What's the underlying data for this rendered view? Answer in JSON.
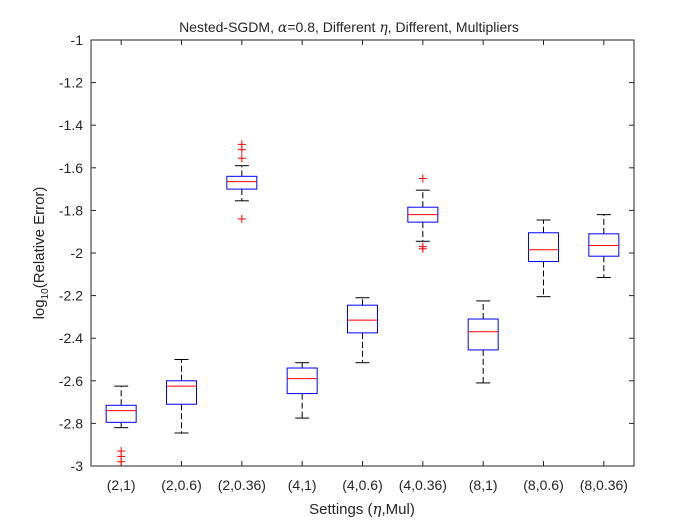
{
  "chart_data": {
    "type": "boxplot",
    "title": {
      "prefix": "Nested-SGDM, ",
      "alpha_symbol": "α",
      "alpha_value": "=0.8, Different ",
      "eta_symbol": "η",
      "suffix": ", Different, Multipliers"
    },
    "xlabel": {
      "prefix": "Settings (",
      "eta_symbol": "η",
      "suffix": ",Mul)"
    },
    "ylabel": {
      "prefix": "log",
      "subscript": "10",
      "suffix": "(Relative Error)"
    },
    "ylim": [
      -3,
      -1
    ],
    "yticks": [
      -3,
      -2.8,
      -2.6,
      -2.4,
      -2.2,
      -2,
      -1.8,
      -1.6,
      -1.4,
      -1.2,
      -1
    ],
    "ytick_labels": [
      "-3",
      "-2.8",
      "-2.6",
      "-2.4",
      "-2.2",
      "-2",
      "-1.8",
      "-1.6",
      "-1.4",
      "-1.2",
      "-1"
    ],
    "categories": [
      "(2,1)",
      "(2,0.6)",
      "(2,0.36)",
      "(4,1)",
      "(4,0.6)",
      "(4,0.36)",
      "(8,1)",
      "(8,0.6)",
      "(8,0.36)"
    ],
    "boxes": [
      {
        "whisker_low": -2.82,
        "q1": -2.795,
        "median": -2.74,
        "q3": -2.715,
        "whisker_high": -2.625,
        "outliers": [
          -2.93,
          -2.955,
          -2.98
        ]
      },
      {
        "whisker_low": -2.845,
        "q1": -2.71,
        "median": -2.625,
        "q3": -2.6,
        "whisker_high": -2.5,
        "outliers": []
      },
      {
        "whisker_low": -1.755,
        "q1": -1.7,
        "median": -1.665,
        "q3": -1.64,
        "whisker_high": -1.59,
        "outliers": [
          -1.49,
          -1.515,
          -1.555,
          -1.84
        ]
      },
      {
        "whisker_low": -2.775,
        "q1": -2.66,
        "median": -2.59,
        "q3": -2.54,
        "whisker_high": -2.515,
        "outliers": []
      },
      {
        "whisker_low": -2.515,
        "q1": -2.375,
        "median": -2.315,
        "q3": -2.245,
        "whisker_high": -2.21,
        "outliers": []
      },
      {
        "whisker_low": -1.945,
        "q1": -1.855,
        "median": -1.82,
        "q3": -1.785,
        "whisker_high": -1.705,
        "outliers": [
          -1.65,
          -1.97,
          -1.98
        ]
      },
      {
        "whisker_low": -2.61,
        "q1": -2.455,
        "median": -2.37,
        "q3": -2.31,
        "whisker_high": -2.225,
        "outliers": []
      },
      {
        "whisker_low": -2.205,
        "q1": -2.04,
        "median": -1.985,
        "q3": -1.905,
        "whisker_high": -1.845,
        "outliers": []
      },
      {
        "whisker_low": -2.115,
        "q1": -2.015,
        "median": -1.965,
        "q3": -1.91,
        "whisker_high": -1.82,
        "outliers": []
      }
    ],
    "colors": {
      "box": "#0000ff",
      "median": "#ff0000",
      "whisker": "#000000",
      "outlier": "#ff0000",
      "axis": "#262626"
    }
  }
}
